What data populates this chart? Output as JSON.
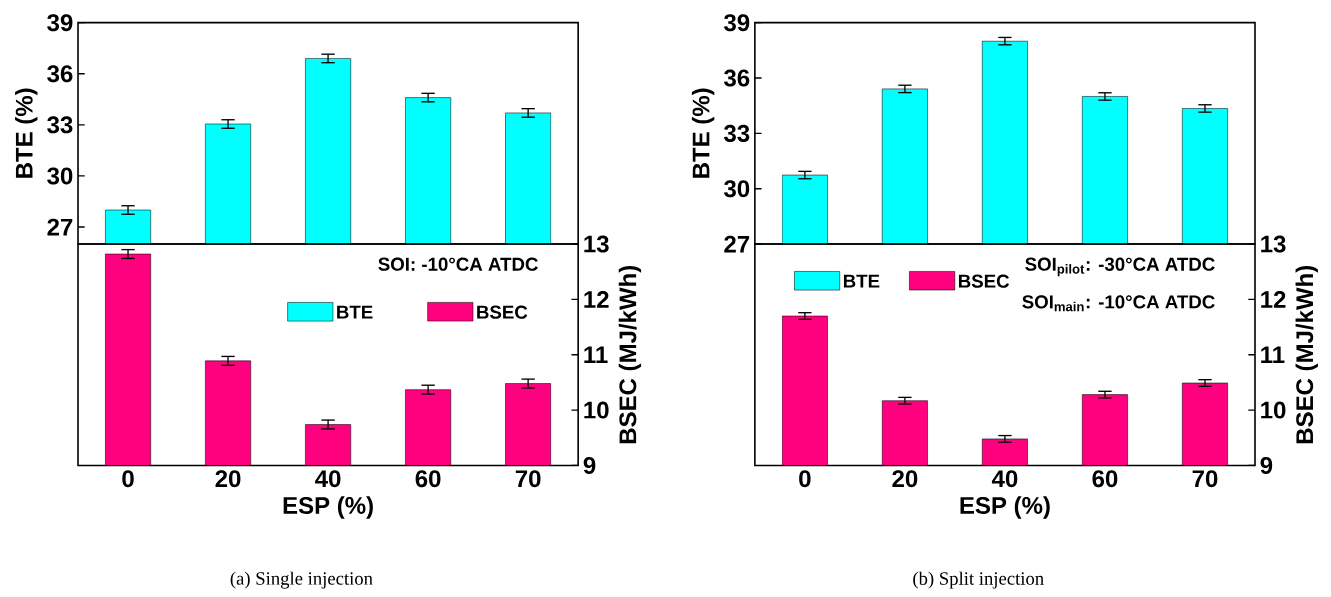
{
  "chart_data": [
    {
      "type": "bar",
      "categories": [
        "0",
        "20",
        "40",
        "60",
        "70"
      ],
      "tick_labels": "y",
      "ylabel": "BTE (%)",
      "ylim": [
        26,
        39
      ],
      "yticks": [
        27,
        30,
        33,
        36,
        39
      ],
      "legend": "bottom",
      "series": [
        {
          "name": "BTE",
          "color": "#00ffff",
          "values": [
            28.0,
            33.05,
            36.9,
            34.6,
            33.7
          ],
          "errors": [
            0.25,
            0.25,
            0.25,
            0.25,
            0.25
          ]
        }
      ]
    },
    {
      "type": "bar",
      "categories": [
        "0",
        "20",
        "40",
        "60",
        "70"
      ],
      "xlabel": "ESP (%)",
      "ylabel": "BSEC (MJ/kWh)",
      "ylim": [
        9,
        13
      ],
      "yticks": [
        9,
        10,
        11,
        12,
        13
      ],
      "legend": "top right",
      "series": [
        {
          "name": "BSEC",
          "color": "#ff007f",
          "values": [
            12.82,
            10.89,
            9.74,
            10.37,
            10.48
          ],
          "errors": [
            0.08,
            0.08,
            0.08,
            0.08,
            0.08
          ]
        }
      ],
      "annotations": [
        "SOI: -10°CA ATDC",
        "(a) Single injection"
      ]
    },
    {
      "type": "bar",
      "categories": [
        "0",
        "20",
        "40",
        "60",
        "70"
      ],
      "tick_labels": "y",
      "ylabel": "BTE (%)",
      "ylim": [
        27,
        39
      ],
      "yticks": [
        27,
        30,
        33,
        36,
        39
      ],
      "legend": "bottom",
      "series": [
        {
          "name": "BTE",
          "color": "#00ffff",
          "values": [
            30.74,
            35.41,
            38.0,
            35.0,
            34.35
          ],
          "errors": [
            0.2,
            0.2,
            0.2,
            0.2,
            0.2
          ]
        }
      ]
    },
    {
      "type": "bar",
      "categories": [
        "0",
        "20",
        "40",
        "60",
        "70"
      ],
      "xlabel": "ESP (%)",
      "ylabel": "BSEC (MJ/kWh)",
      "ylim": [
        9,
        13
      ],
      "yticks": [
        9,
        10,
        11,
        12,
        13
      ],
      "legend": "top left",
      "series": [
        {
          "name": "BSEC",
          "color": "#ff007f",
          "values": [
            11.7,
            10.17,
            9.48,
            10.28,
            10.49
          ],
          "errors": [
            0.06,
            0.06,
            0.06,
            0.06,
            0.06
          ]
        }
      ],
      "annotations": [
        "SOI$_{pilot}$: -30°CA ATDC",
        "SOI$_{main}$: -10°CA ATDC",
        "(b) Split injection"
      ]
    }
  ]
}
